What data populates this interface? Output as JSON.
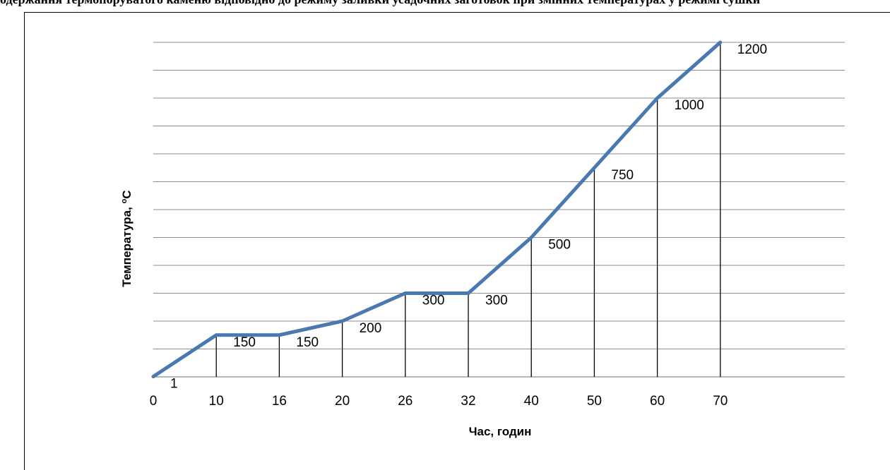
{
  "header_fragment": "одержання термопоруватого каменю відповідно до режиму заливки усадочних заготовок при змінних температурах у режимі сушки",
  "chart_data": {
    "type": "line",
    "title": "",
    "xlabel": "Час, годин",
    "ylabel": "Температура, °C",
    "ylabel_main": "Температура, ",
    "ylabel_deg": "o",
    "ylabel_unit": "C",
    "categories": [
      "0",
      "10",
      "16",
      "20",
      "26",
      "32",
      "40",
      "50",
      "60",
      "70"
    ],
    "values": [
      1,
      150,
      150,
      200,
      300,
      300,
      500,
      750,
      1000,
      1200
    ],
    "data_labels": [
      "1",
      "150",
      "150",
      "200",
      "300",
      "300",
      "500",
      "750",
      "1000",
      "1200"
    ],
    "ylim": [
      0,
      1200
    ],
    "y_grid_step": 100,
    "y_tick_labels_shown": false,
    "grid": true,
    "drop_lines": true,
    "line_color": "#4a78b0",
    "grid_color": "#8c8c8c"
  }
}
